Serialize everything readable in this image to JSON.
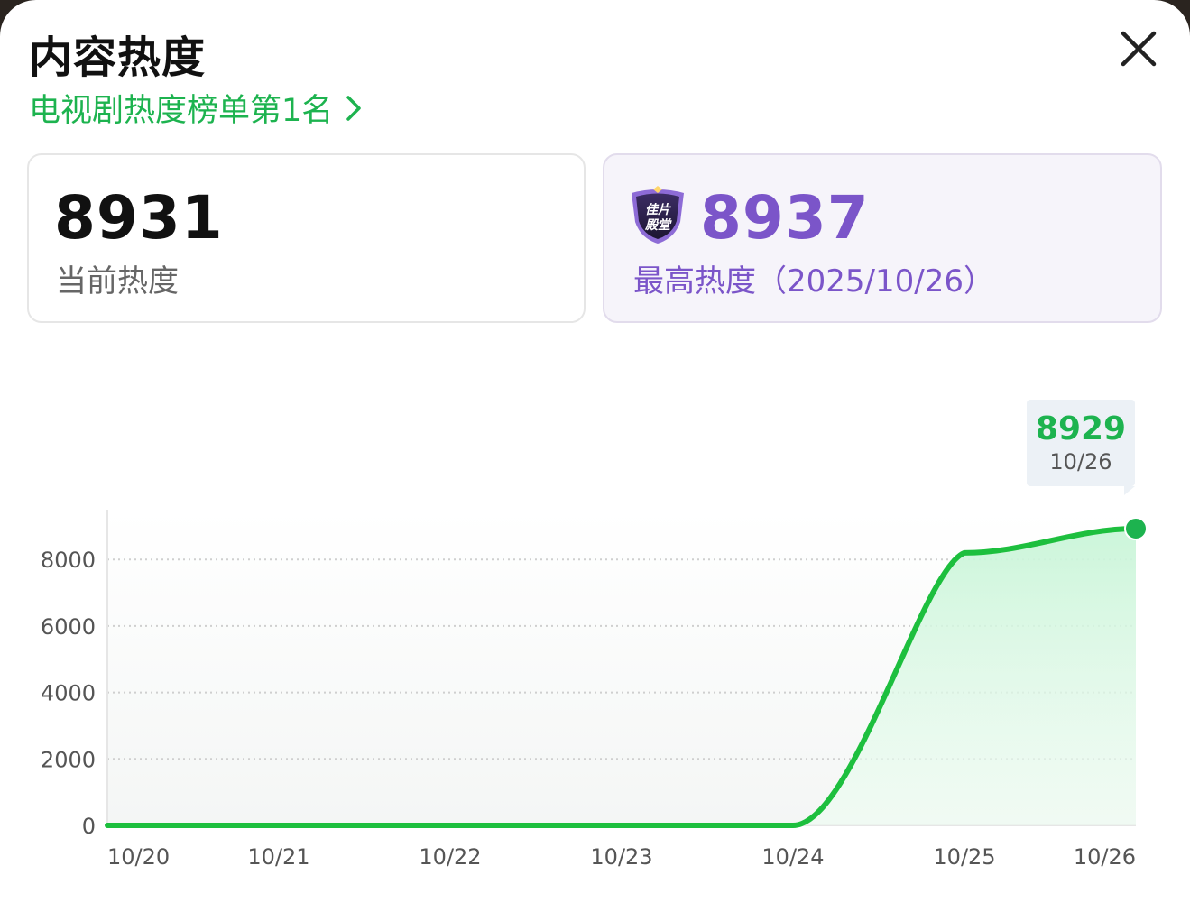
{
  "header": {
    "title": "内容热度",
    "rank_link": "电视剧热度榜单第1名"
  },
  "current": {
    "value": "8931",
    "label": "当前热度"
  },
  "peak": {
    "value": "8937",
    "label": "最高热度（2025/10/26）",
    "badge_text": "佳片殿堂"
  },
  "tooltip": {
    "value": "8929",
    "date": "10/26"
  },
  "colors": {
    "accent": "#1db34f",
    "peak": "#7b55c9"
  },
  "chart_data": {
    "type": "area",
    "title": "",
    "xlabel": "",
    "ylabel": "",
    "categories": [
      "10/20",
      "10/21",
      "10/22",
      "10/23",
      "10/24",
      "10/25",
      "10/26"
    ],
    "values": [
      0,
      0,
      0,
      0,
      0,
      8200,
      8929
    ],
    "y_ticks": [
      "0",
      "2000",
      "4000",
      "6000",
      "8000"
    ],
    "ylim": [
      0,
      8929
    ],
    "grid": true,
    "highlight": {
      "category": "10/26",
      "value": 8929
    }
  }
}
